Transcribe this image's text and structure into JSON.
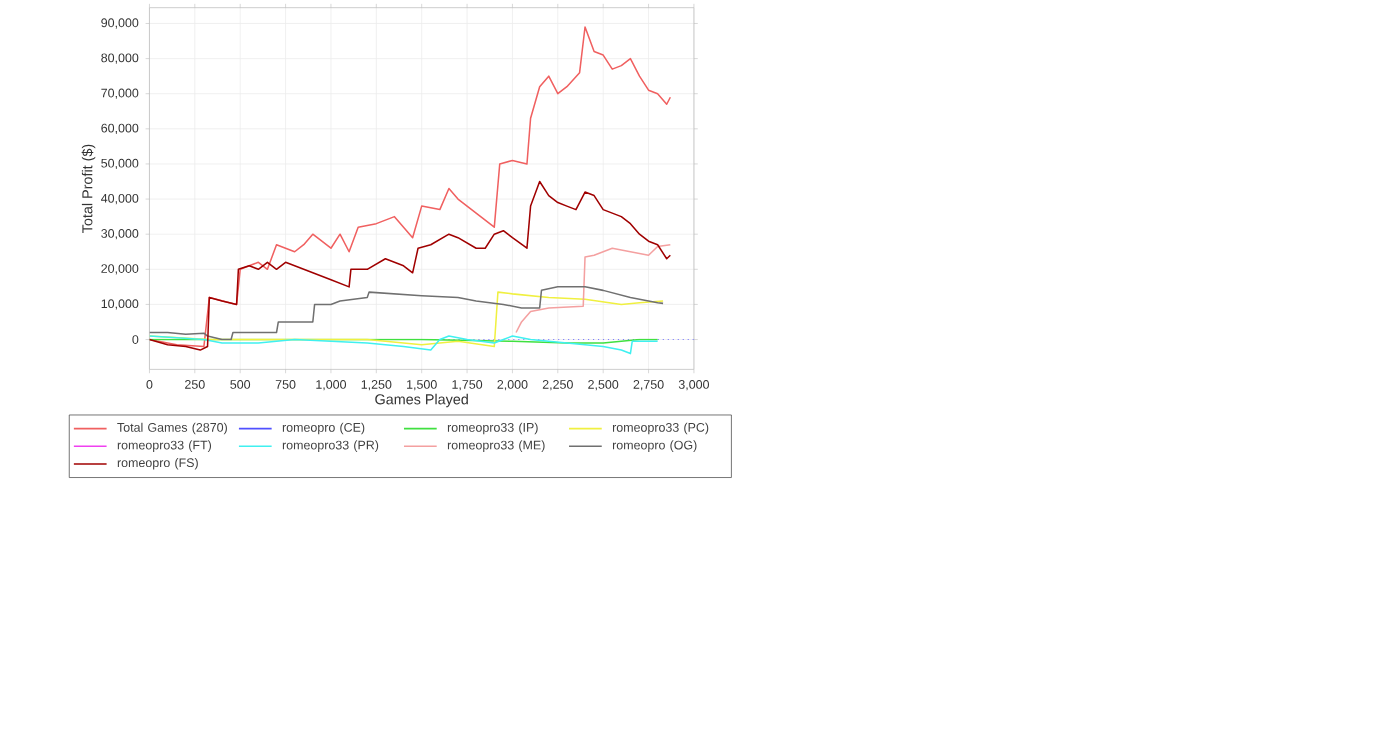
{
  "chart_data": {
    "type": "line",
    "xlabel": "Games Played",
    "ylabel": "Total Profit ($)",
    "xlim": [
      0,
      3000
    ],
    "ylim": [
      -8500,
      94500
    ],
    "xticks": [
      0,
      250,
      500,
      750,
      {
        "value": 1000,
        "label": "1,000"
      },
      {
        "value": 1250,
        "label": "1,250"
      },
      {
        "value": 1500,
        "label": "1,500"
      },
      {
        "value": 1750,
        "label": "1,750"
      },
      {
        "value": 2000,
        "label": "2,000"
      },
      {
        "value": 2250,
        "label": "2,250"
      },
      {
        "value": 2500,
        "label": "2,500"
      },
      {
        "value": 2750,
        "label": "2,750"
      },
      {
        "value": 3000,
        "label": "3,000"
      }
    ],
    "yticks": [
      0,
      {
        "value": 10000,
        "label": "10,000"
      },
      {
        "value": 20000,
        "label": "20,000"
      },
      {
        "value": 30000,
        "label": "30,000"
      },
      {
        "value": 40000,
        "label": "40,000"
      },
      {
        "value": 50000,
        "label": "50,000"
      },
      {
        "value": 60000,
        "label": "60,000"
      },
      {
        "value": 70000,
        "label": "70,000"
      },
      {
        "value": 80000,
        "label": "80,000"
      },
      {
        "value": 90000,
        "label": "90,000"
      }
    ],
    "grid": true,
    "legend": "bottom",
    "marker": "none",
    "line_style": "solid",
    "ref_lines": [
      {
        "axis": "y",
        "value": 0,
        "color": "#8080ff",
        "line_style": "dotted"
      }
    ],
    "series": [
      {
        "name": "Total Games (2870)",
        "color": "#f06060",
        "x": [
          0,
          150,
          300,
          330,
          480,
          500,
          600,
          650,
          700,
          800,
          850,
          900,
          1000,
          1050,
          1100,
          1150,
          1250,
          1350,
          1450,
          1500,
          1600,
          1650,
          1700,
          1900,
          1930,
          2000,
          2080,
          2100,
          2150,
          2200,
          2250,
          2300,
          2370,
          2400,
          2450,
          2500,
          2550,
          2600,
          2650,
          2700,
          2750,
          2800,
          2850,
          2870
        ],
        "values": [
          0,
          -1500,
          -2000,
          12000,
          10000,
          20000,
          22000,
          20000,
          27000,
          25000,
          27000,
          30000,
          26000,
          30000,
          25000,
          32000,
          33000,
          35000,
          29000,
          38000,
          37000,
          43000,
          40000,
          32000,
          50000,
          51000,
          50000,
          63000,
          72000,
          75000,
          70000,
          72000,
          76000,
          89000,
          82000,
          81000,
          77000,
          78000,
          80000,
          75000,
          71000,
          70000,
          67000,
          69000
        ]
      },
      {
        "name": "romeopro (CE)",
        "color": "#5050ff"
      },
      {
        "name": "romeopro33 (IP)",
        "color": "#40e040",
        "x": [
          0,
          500,
          1000,
          1500,
          2000,
          2300,
          2500,
          2700,
          2800
        ],
        "values": [
          0,
          0,
          0,
          0,
          -500,
          -1000,
          -1000,
          0,
          0
        ]
      },
      {
        "name": "romeopro33 (PC)",
        "color": "#f0f040",
        "x": [
          0,
          330,
          500,
          1000,
          1200,
          1300,
          1500,
          1700,
          1900,
          1920,
          2000,
          2200,
          2400,
          2600,
          2700,
          2830
        ],
        "values": [
          1000,
          0,
          0,
          0,
          0,
          -500,
          -1500,
          -500,
          -2000,
          13500,
          13000,
          12000,
          11500,
          10000,
          10500,
          11000
        ]
      },
      {
        "name": "romeopro33 (FT)",
        "color": "#f040f0"
      },
      {
        "name": "romeopro33 (PR)",
        "color": "#40f0f0",
        "x": [
          0,
          300,
          400,
          600,
          800,
          1000,
          1200,
          1400,
          1550,
          1600,
          1650,
          1750,
          1900,
          1950,
          2000,
          2100,
          2300,
          2500,
          2600,
          2650,
          2660,
          2800
        ],
        "values": [
          1000,
          0,
          -1000,
          -1000,
          0,
          -500,
          -1000,
          -2000,
          -3000,
          0,
          1000,
          0,
          -1000,
          0,
          1000,
          0,
          -1000,
          -2000,
          -3000,
          -4000,
          -500,
          -500
        ]
      },
      {
        "name": "romeopro33 (ME)",
        "color": "#f4a0a0",
        "x": [
          2020,
          2050,
          2100,
          2200,
          2390,
          2400,
          2450,
          2550,
          2650,
          2750,
          2800,
          2870
        ],
        "values": [
          2000,
          5000,
          8000,
          9000,
          9500,
          23500,
          24000,
          26000,
          25000,
          24000,
          26500,
          27000
        ]
      },
      {
        "name": "romeopro (OG)",
        "color": "#707070",
        "x": [
          0,
          100,
          200,
          300,
          320,
          400,
          450,
          460,
          700,
          710,
          900,
          910,
          1000,
          1050,
          1200,
          1210,
          1500,
          1700,
          1800,
          1950,
          2050,
          2150,
          2160,
          2250,
          2400,
          2500,
          2650,
          2800,
          2830
        ],
        "values": [
          2000,
          2000,
          1500,
          1800,
          1000,
          0,
          0,
          2000,
          2000,
          5000,
          5000,
          10000,
          10000,
          11000,
          12000,
          13500,
          12500,
          12000,
          11000,
          10000,
          9000,
          9000,
          14000,
          15000,
          15000,
          14000,
          12000,
          10500,
          10300
        ]
      },
      {
        "name": "romeopro (FS)",
        "color": "#a00000",
        "x": [
          0,
          100,
          200,
          280,
          320,
          330,
          400,
          480,
          490,
          550,
          600,
          650,
          700,
          750,
          800,
          900,
          1000,
          1100,
          1110,
          1200,
          1300,
          1400,
          1450,
          1480,
          1550,
          1650,
          1700,
          1800,
          1850,
          1900,
          1950,
          2000,
          2080,
          2100,
          2150,
          2200,
          2250,
          2300,
          2350,
          2400,
          2450,
          2500,
          2600,
          2650,
          2700,
          2750,
          2800,
          2850,
          2870
        ],
        "values": [
          0,
          -1500,
          -2000,
          -3000,
          -2000,
          12000,
          11000,
          10000,
          20000,
          21000,
          20000,
          22000,
          20000,
          22000,
          21000,
          19000,
          17000,
          15000,
          20000,
          20000,
          23000,
          21000,
          19000,
          26000,
          27000,
          30000,
          29000,
          26000,
          26000,
          30000,
          31000,
          29000,
          26000,
          38000,
          45000,
          41000,
          39000,
          38000,
          37000,
          42000,
          41000,
          37000,
          35000,
          33000,
          30000,
          28000,
          27000,
          23000,
          24000
        ]
      }
    ]
  }
}
